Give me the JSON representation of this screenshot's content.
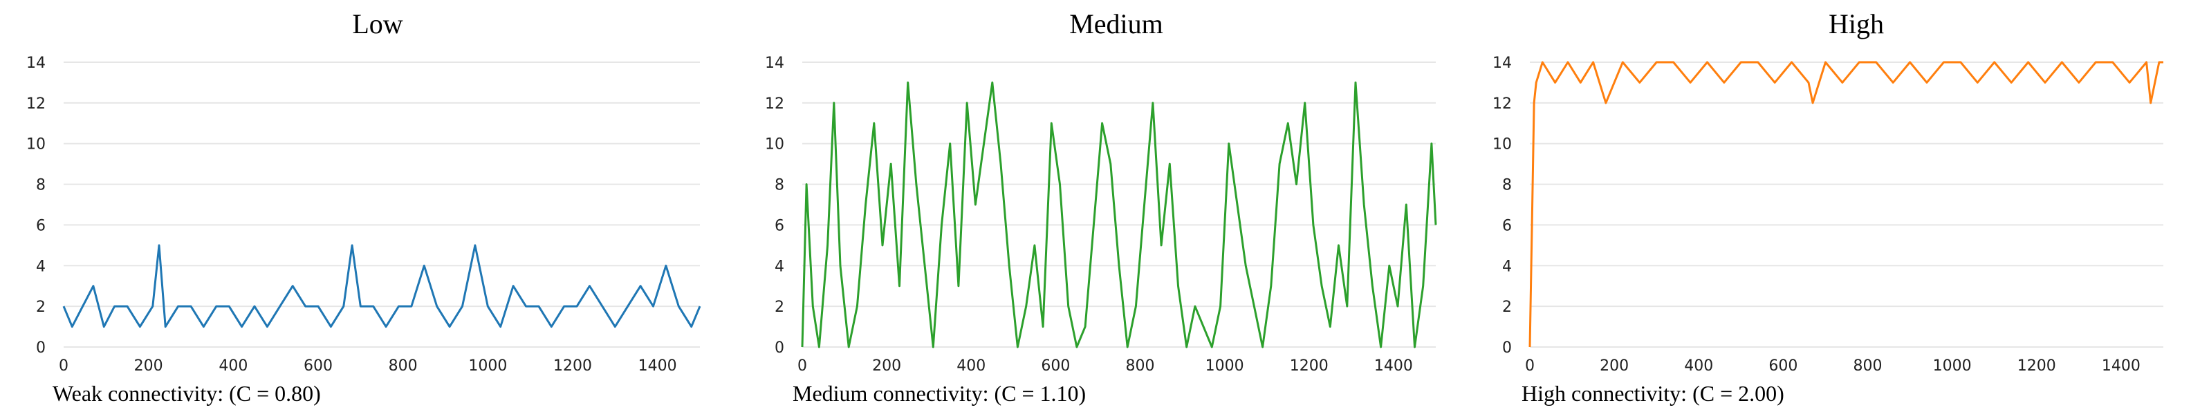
{
  "panels": [
    {
      "title": "Low",
      "caption": "Weak connectivity: (C = 0.80)",
      "color": "#1f77b4"
    },
    {
      "title": "Medium",
      "caption": "Medium connectivity: (C = 1.10)",
      "color": "#2ca02c"
    },
    {
      "title": "High",
      "caption": "High connectivity: (C = 2.00)",
      "color": "#ff7f0e"
    }
  ],
  "chart_data": [
    {
      "type": "line",
      "title": "Low",
      "xlim": [
        0,
        1500
      ],
      "ylim": [
        0,
        14
      ],
      "xticks": [
        0,
        200,
        400,
        600,
        800,
        1000,
        1200,
        1400
      ],
      "yticks": [
        0,
        2,
        4,
        6,
        8,
        10,
        12,
        14
      ],
      "grid": "horizontal",
      "series": [
        {
          "color": "#1f77b4",
          "x": [
            0,
            20,
            45,
            70,
            95,
            120,
            150,
            180,
            210,
            225,
            240,
            270,
            300,
            330,
            360,
            390,
            420,
            450,
            480,
            510,
            540,
            570,
            600,
            630,
            660,
            680,
            700,
            730,
            760,
            790,
            820,
            850,
            880,
            910,
            940,
            970,
            1000,
            1030,
            1060,
            1090,
            1120,
            1150,
            1180,
            1210,
            1240,
            1270,
            1300,
            1330,
            1360,
            1390,
            1420,
            1450,
            1480,
            1500
          ],
          "y": [
            2,
            1,
            2,
            3,
            1,
            2,
            2,
            1,
            2,
            5,
            1,
            2,
            2,
            1,
            2,
            2,
            1,
            2,
            1,
            2,
            3,
            2,
            2,
            1,
            2,
            5,
            2,
            2,
            1,
            2,
            2,
            4,
            2,
            1,
            2,
            5,
            2,
            1,
            3,
            2,
            2,
            1,
            2,
            2,
            3,
            2,
            1,
            2,
            3,
            2,
            4,
            2,
            1,
            2
          ]
        }
      ]
    },
    {
      "type": "line",
      "title": "Medium",
      "xlim": [
        0,
        1500
      ],
      "ylim": [
        0,
        14
      ],
      "xticks": [
        0,
        200,
        400,
        600,
        800,
        1000,
        1200,
        1400
      ],
      "yticks": [
        0,
        2,
        4,
        6,
        8,
        10,
        12,
        14
      ],
      "grid": "horizontal",
      "series": [
        {
          "color": "#2ca02c",
          "x": [
            0,
            10,
            25,
            40,
            60,
            75,
            90,
            110,
            130,
            150,
            170,
            190,
            210,
            230,
            250,
            270,
            290,
            310,
            330,
            350,
            370,
            390,
            410,
            430,
            450,
            470,
            490,
            510,
            530,
            550,
            570,
            590,
            610,
            630,
            650,
            670,
            690,
            710,
            730,
            750,
            770,
            790,
            810,
            830,
            850,
            870,
            890,
            910,
            930,
            950,
            970,
            990,
            1010,
            1030,
            1050,
            1070,
            1090,
            1110,
            1130,
            1150,
            1170,
            1190,
            1210,
            1230,
            1250,
            1270,
            1290,
            1310,
            1330,
            1350,
            1370,
            1390,
            1410,
            1430,
            1450,
            1470,
            1490,
            1500
          ],
          "y": [
            0,
            8,
            2,
            0,
            5,
            12,
            4,
            0,
            2,
            7,
            11,
            5,
            9,
            3,
            13,
            8,
            4,
            0,
            6,
            10,
            3,
            12,
            7,
            10,
            13,
            9,
            4,
            0,
            2,
            5,
            1,
            11,
            8,
            2,
            0,
            1,
            6,
            11,
            9,
            4,
            0,
            2,
            7,
            12,
            5,
            9,
            3,
            0,
            2,
            1,
            0,
            2,
            10,
            7,
            4,
            2,
            0,
            3,
            9,
            11,
            8,
            12,
            6,
            3,
            1,
            5,
            2,
            13,
            7,
            3,
            0,
            4,
            2,
            7,
            0,
            3,
            10,
            6
          ]
        }
      ]
    },
    {
      "type": "line",
      "title": "High",
      "xlim": [
        0,
        1500
      ],
      "ylim": [
        0,
        14
      ],
      "xticks": [
        0,
        200,
        400,
        600,
        800,
        1000,
        1200,
        1400
      ],
      "yticks": [
        0,
        2,
        4,
        6,
        8,
        10,
        12,
        14
      ],
      "grid": "horizontal",
      "series": [
        {
          "color": "#ff7f0e",
          "x": [
            0,
            5,
            10,
            15,
            30,
            60,
            90,
            120,
            150,
            180,
            220,
            260,
            300,
            340,
            380,
            420,
            460,
            500,
            540,
            580,
            620,
            660,
            670,
            700,
            740,
            780,
            820,
            860,
            900,
            940,
            980,
            1020,
            1060,
            1100,
            1140,
            1180,
            1220,
            1260,
            1300,
            1340,
            1380,
            1420,
            1460,
            1470,
            1490,
            1500
          ],
          "y": [
            0,
            6,
            12,
            13,
            14,
            13,
            14,
            13,
            14,
            12,
            14,
            13,
            14,
            14,
            13,
            14,
            13,
            14,
            14,
            13,
            14,
            13,
            12,
            14,
            13,
            14,
            14,
            13,
            14,
            13,
            14,
            14,
            13,
            14,
            13,
            14,
            13,
            14,
            13,
            14,
            14,
            13,
            14,
            12,
            14,
            14
          ]
        }
      ]
    }
  ]
}
